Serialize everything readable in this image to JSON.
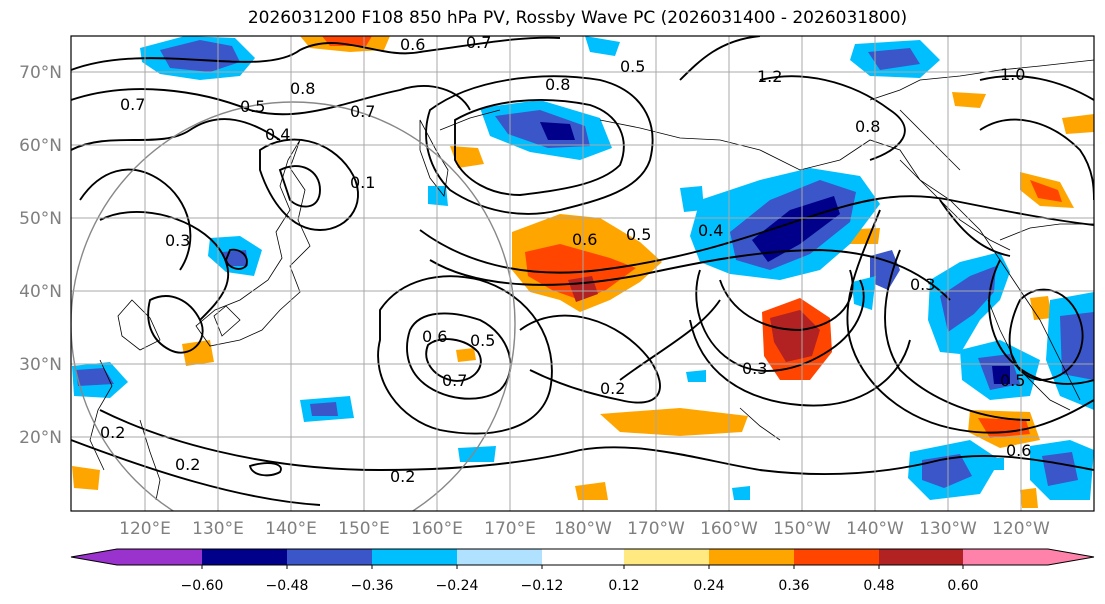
{
  "title": "2026031200 F108 850 hPa PV, Rossby Wave PC (2026031400 - 2026031800)",
  "map": {
    "lat_labels": [
      "70°N",
      "60°N",
      "50°N",
      "40°N",
      "30°N",
      "20°N"
    ],
    "lon_labels": [
      "120°E",
      "130°E",
      "140°E",
      "150°E",
      "160°E",
      "170°E",
      "180°W",
      "170°W",
      "160°W",
      "150°W",
      "140°W",
      "130°W",
      "120°W"
    ],
    "contour_labels": [
      "0.6",
      "0.7",
      "0.5",
      "1.2",
      "1.0",
      "0.8",
      "0.7",
      "0.5",
      "0.4",
      "0.1",
      "0.3",
      "0.6",
      "0.5",
      "0.4",
      "0.8",
      "0.7",
      "0.3",
      "0.2",
      "0.6",
      "0.5",
      "0.7",
      "0.2",
      "0.3",
      "0.5",
      "0.6",
      "0.8",
      "0.2",
      "0.2"
    ]
  },
  "colorbar": {
    "ticks": [
      "−0.60",
      "−0.48",
      "−0.36",
      "−0.24",
      "−0.12",
      "0.12",
      "0.24",
      "0.36",
      "0.48",
      "0.60"
    ],
    "colors": [
      "#9a32cd",
      "#00008b",
      "#3a56c8",
      "#00bfff",
      "#b0e2ff",
      "#ffffff",
      "#ffe980",
      "#ffa500",
      "#ff4500",
      "#b22222",
      "#ff82ab"
    ]
  }
}
